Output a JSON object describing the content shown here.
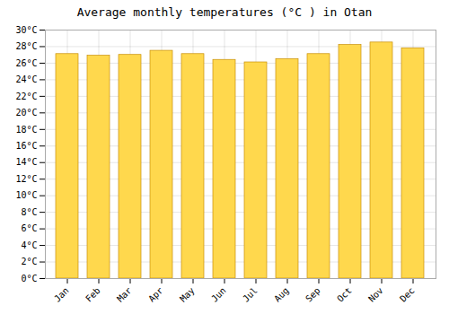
{
  "chart_data": {
    "type": "bar",
    "title": "Average monthly temperatures (°C ) in Otan",
    "categories": [
      "Jan",
      "Feb",
      "Mar",
      "Apr",
      "May",
      "Jun",
      "Jul",
      "Aug",
      "Sep",
      "Oct",
      "Nov",
      "Dec"
    ],
    "values": [
      27.1,
      26.9,
      27.0,
      27.5,
      27.1,
      26.4,
      26.1,
      26.5,
      27.1,
      28.2,
      28.5,
      27.8
    ],
    "color": "#FFD84D",
    "ylim": [
      0,
      30
    ],
    "yticks": [
      {
        "value": 0,
        "label": "0°C"
      },
      {
        "value": 2,
        "label": "2°C"
      },
      {
        "value": 4,
        "label": "4°C"
      },
      {
        "value": 6,
        "label": "6°C"
      },
      {
        "value": 8,
        "label": "8°C"
      },
      {
        "value": 10,
        "label": "10°C"
      },
      {
        "value": 12,
        "label": "12°C"
      },
      {
        "value": 14,
        "label": "14°C"
      },
      {
        "value": 16,
        "label": "16°C"
      },
      {
        "value": 18,
        "label": "18°C"
      },
      {
        "value": 20,
        "label": "20°C"
      },
      {
        "value": 22,
        "label": "22°C"
      },
      {
        "value": 24,
        "label": "24°C"
      },
      {
        "value": 26,
        "label": "26°C"
      },
      {
        "value": 28,
        "label": "28°C"
      },
      {
        "value": 30,
        "label": "30°C"
      }
    ],
    "grid": true
  }
}
